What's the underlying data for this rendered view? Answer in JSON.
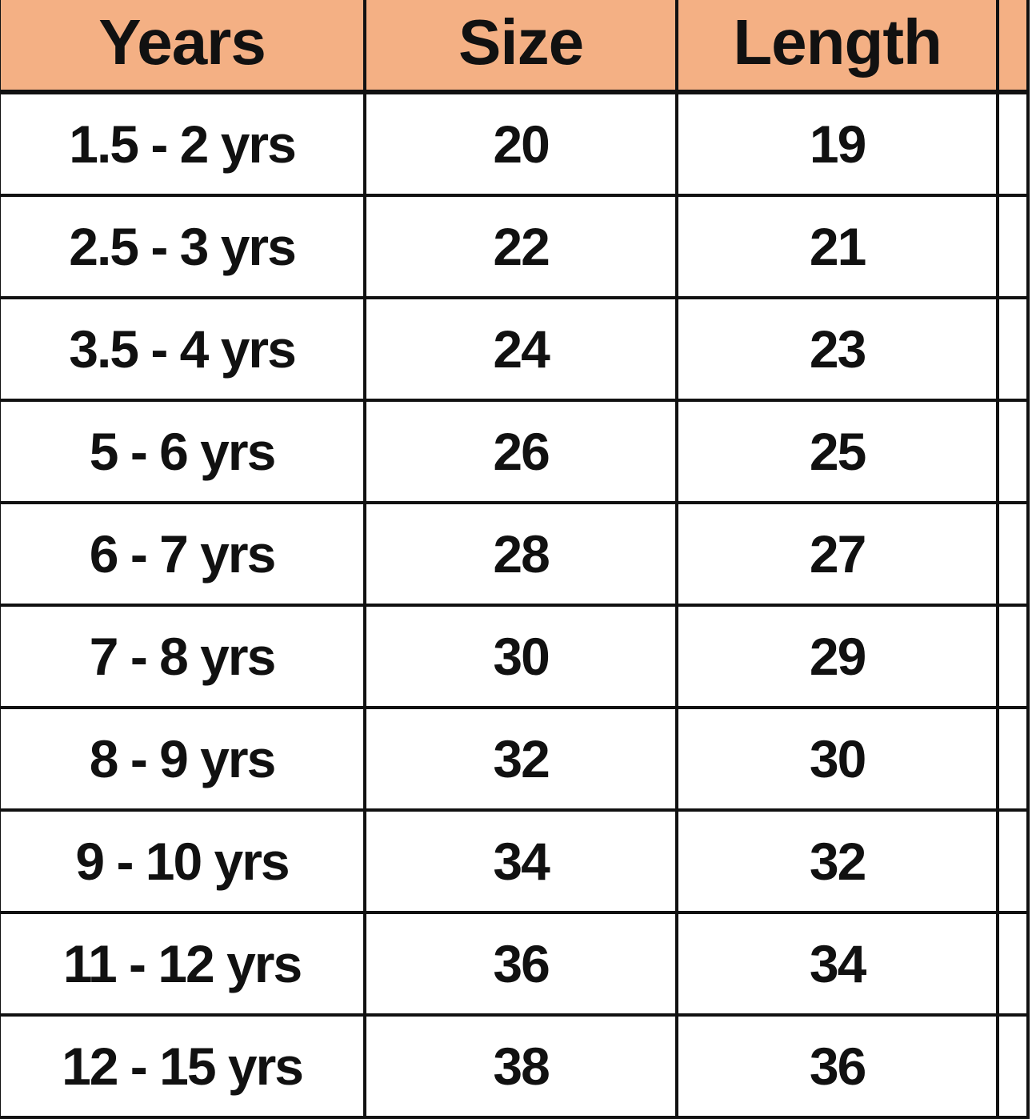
{
  "table": {
    "header_color": "#F4B084",
    "headers": [
      "Years",
      "Size",
      "Length"
    ],
    "rows": [
      [
        "1.5 - 2 yrs",
        "20",
        "19"
      ],
      [
        "2.5 - 3 yrs",
        "22",
        "21"
      ],
      [
        "3.5 - 4 yrs",
        "24",
        "23"
      ],
      [
        "5 - 6 yrs",
        "26",
        "25"
      ],
      [
        "6 - 7 yrs",
        "28",
        "27"
      ],
      [
        "7 - 8 yrs",
        "30",
        "29"
      ],
      [
        "8 - 9 yrs",
        "32",
        "30"
      ],
      [
        "9 - 10 yrs",
        "34",
        "32"
      ],
      [
        "11 - 12 yrs",
        "36",
        "34"
      ],
      [
        "12 - 15 yrs",
        "38",
        "36"
      ]
    ]
  }
}
